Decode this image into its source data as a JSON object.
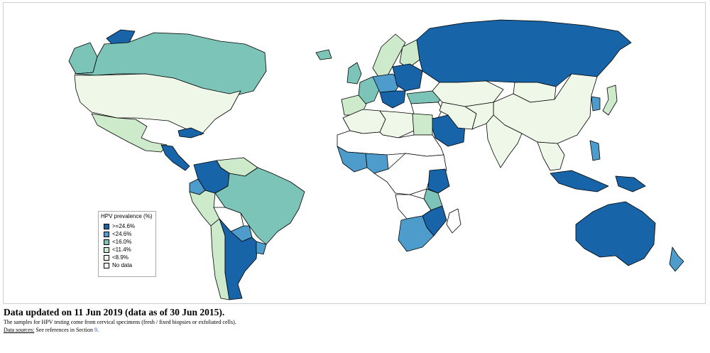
{
  "legend": {
    "title": "HPV prevalence (%)",
    "items": [
      {
        "label": ">=24.6%",
        "color": "#1864a8"
      },
      {
        "label": "<24.6%",
        "color": "#4d9ccc"
      },
      {
        "label": "<16.0%",
        "color": "#7dc4b8"
      },
      {
        "label": "<11.4%",
        "color": "#cdeacb"
      },
      {
        "label": "<8.9%",
        "color": "#eef7e8"
      },
      {
        "label": "No data",
        "color": "#ffffff"
      }
    ]
  },
  "caption": {
    "title": "Data updated on 11 Jun 2019 (data as of 30 Jun 2015).",
    "note": "The samples for HPV testing come from cervical specimens (fresh / fixed biopsies or exfoliated cells).",
    "sources_label": "Data sources:",
    "sources_text": " See references in Section ",
    "section_ref": "9",
    "sources_end": "."
  },
  "regions": [
    {
      "name": "canada",
      "category": "<16.0%"
    },
    {
      "name": "alaska",
      "category": "<16.0%"
    },
    {
      "name": "greenland",
      "category": ">=24.6%"
    },
    {
      "name": "united-states",
      "category": "<8.9%"
    },
    {
      "name": "mexico",
      "category": "<11.4%"
    },
    {
      "name": "central-america",
      "category": ">=24.6%"
    },
    {
      "name": "cuba",
      "category": ">=24.6%"
    },
    {
      "name": "venezuela",
      "category": "<11.4%"
    },
    {
      "name": "colombia",
      "category": ">=24.6%"
    },
    {
      "name": "ecuador",
      "category": "<24.6%"
    },
    {
      "name": "peru",
      "category": "<11.4%"
    },
    {
      "name": "brazil",
      "category": "<16.0%"
    },
    {
      "name": "bolivia",
      "category": "No data"
    },
    {
      "name": "paraguay",
      "category": "<24.6%"
    },
    {
      "name": "chile",
      "category": "<11.4%"
    },
    {
      "name": "argentina",
      "category": ">=24.6%"
    },
    {
      "name": "uruguay",
      "category": "<24.6%"
    },
    {
      "name": "iceland",
      "category": "<16.0%"
    },
    {
      "name": "uk-ireland",
      "category": "<16.0%"
    },
    {
      "name": "scandinavia",
      "category": "<11.4%"
    },
    {
      "name": "finland",
      "category": "<11.4%"
    },
    {
      "name": "western-europe",
      "category": "<16.0%"
    },
    {
      "name": "iberia",
      "category": "<11.4%"
    },
    {
      "name": "central-europe",
      "category": "<24.6%"
    },
    {
      "name": "eastern-europe",
      "category": ">=24.6%"
    },
    {
      "name": "balkans",
      "category": ">=24.6%"
    },
    {
      "name": "turkey",
      "category": "<16.0%"
    },
    {
      "name": "russia",
      "category": ">=24.6%"
    },
    {
      "name": "kazakhstan",
      "category": "<8.9%"
    },
    {
      "name": "mongolia",
      "category": "<8.9%"
    },
    {
      "name": "china",
      "category": "<8.9%"
    },
    {
      "name": "korea",
      "category": "<24.6%"
    },
    {
      "name": "japan",
      "category": "<11.4%"
    },
    {
      "name": "middle-east",
      "category": "No data"
    },
    {
      "name": "saudi-arabia",
      "category": ">=24.6%"
    },
    {
      "name": "iran",
      "category": "<8.9%"
    },
    {
      "name": "south-asia",
      "category": "<8.9%"
    },
    {
      "name": "india",
      "category": "<8.9%"
    },
    {
      "name": "southeast-asia",
      "category": "<8.9%"
    },
    {
      "name": "philippines",
      "category": "<24.6%"
    },
    {
      "name": "indonesia",
      "category": ">=24.6%"
    },
    {
      "name": "new-guinea",
      "category": ">=24.6%"
    },
    {
      "name": "australia",
      "category": ">=24.6%"
    },
    {
      "name": "new-zealand",
      "category": "<24.6%"
    },
    {
      "name": "maghreb",
      "category": "<8.9%"
    },
    {
      "name": "sahara",
      "category": "No data"
    },
    {
      "name": "libya",
      "category": "<8.9%"
    },
    {
      "name": "egypt",
      "category": "<11.4%"
    },
    {
      "name": "west-africa",
      "category": "<24.6%"
    },
    {
      "name": "nigeria",
      "category": "<24.6%"
    },
    {
      "name": "central-africa",
      "category": "No data"
    },
    {
      "name": "kenya",
      "category": ">=24.6%"
    },
    {
      "name": "tanzania",
      "category": "<16.0%"
    },
    {
      "name": "angola",
      "category": "No data"
    },
    {
      "name": "mozambique",
      "category": ">=24.6%"
    },
    {
      "name": "south-africa",
      "category": "<24.6%"
    },
    {
      "name": "madagascar",
      "category": "No data"
    }
  ]
}
